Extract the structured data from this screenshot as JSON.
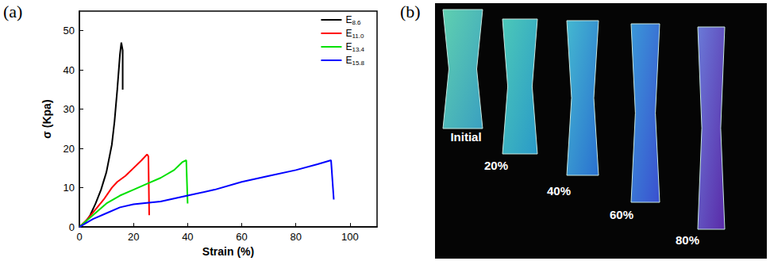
{
  "panel_labels": [
    "(a)",
    "(b)"
  ],
  "photo_panel": {
    "labels": [
      "Initial",
      "20%",
      "40%",
      "60%",
      "80%"
    ]
  },
  "chart_data": {
    "type": "line",
    "x_label": "Strain (%)",
    "y_label": "σ (Kpa)",
    "xlim": [
      0,
      110
    ],
    "xticks": [
      0,
      20,
      40,
      60,
      80,
      100
    ],
    "ylim": [
      0,
      55
    ],
    "yticks": [
      0,
      10,
      20,
      30,
      40,
      50
    ],
    "grid": false,
    "legend": "upper right",
    "series": [
      {
        "name": "E8.6",
        "color": "#000000",
        "x": [
          0,
          2,
          4,
          6,
          8,
          10,
          12,
          13,
          14,
          15,
          15.5,
          16,
          16
        ],
        "values": [
          0,
          1,
          3,
          6,
          9.5,
          14,
          21,
          27,
          35,
          44,
          47,
          45,
          35
        ]
      },
      {
        "name": "E11.0",
        "color": "#ff0000",
        "x": [
          0,
          3,
          6,
          9,
          12,
          14,
          17,
          20,
          23,
          25,
          25.5,
          25.8
        ],
        "values": [
          0,
          2,
          4.5,
          7,
          10,
          11.5,
          13,
          15,
          17,
          18.5,
          18,
          3
        ]
      },
      {
        "name": "E13.4",
        "color": "#00e000",
        "x": [
          0,
          5,
          10,
          15,
          20,
          25,
          30,
          35,
          38,
          39.5,
          40
        ],
        "values": [
          0,
          3,
          6,
          8,
          9.5,
          11,
          12.5,
          14.5,
          16.5,
          17,
          6
        ]
      },
      {
        "name": "E15.8",
        "color": "#0000ff",
        "x": [
          0,
          5,
          10,
          15,
          20,
          30,
          40,
          50,
          60,
          70,
          80,
          88,
          93,
          94
        ],
        "values": [
          0,
          2,
          3.5,
          5,
          5.8,
          6.5,
          8,
          9.5,
          11.5,
          13,
          14.5,
          16,
          17,
          7
        ]
      }
    ]
  }
}
